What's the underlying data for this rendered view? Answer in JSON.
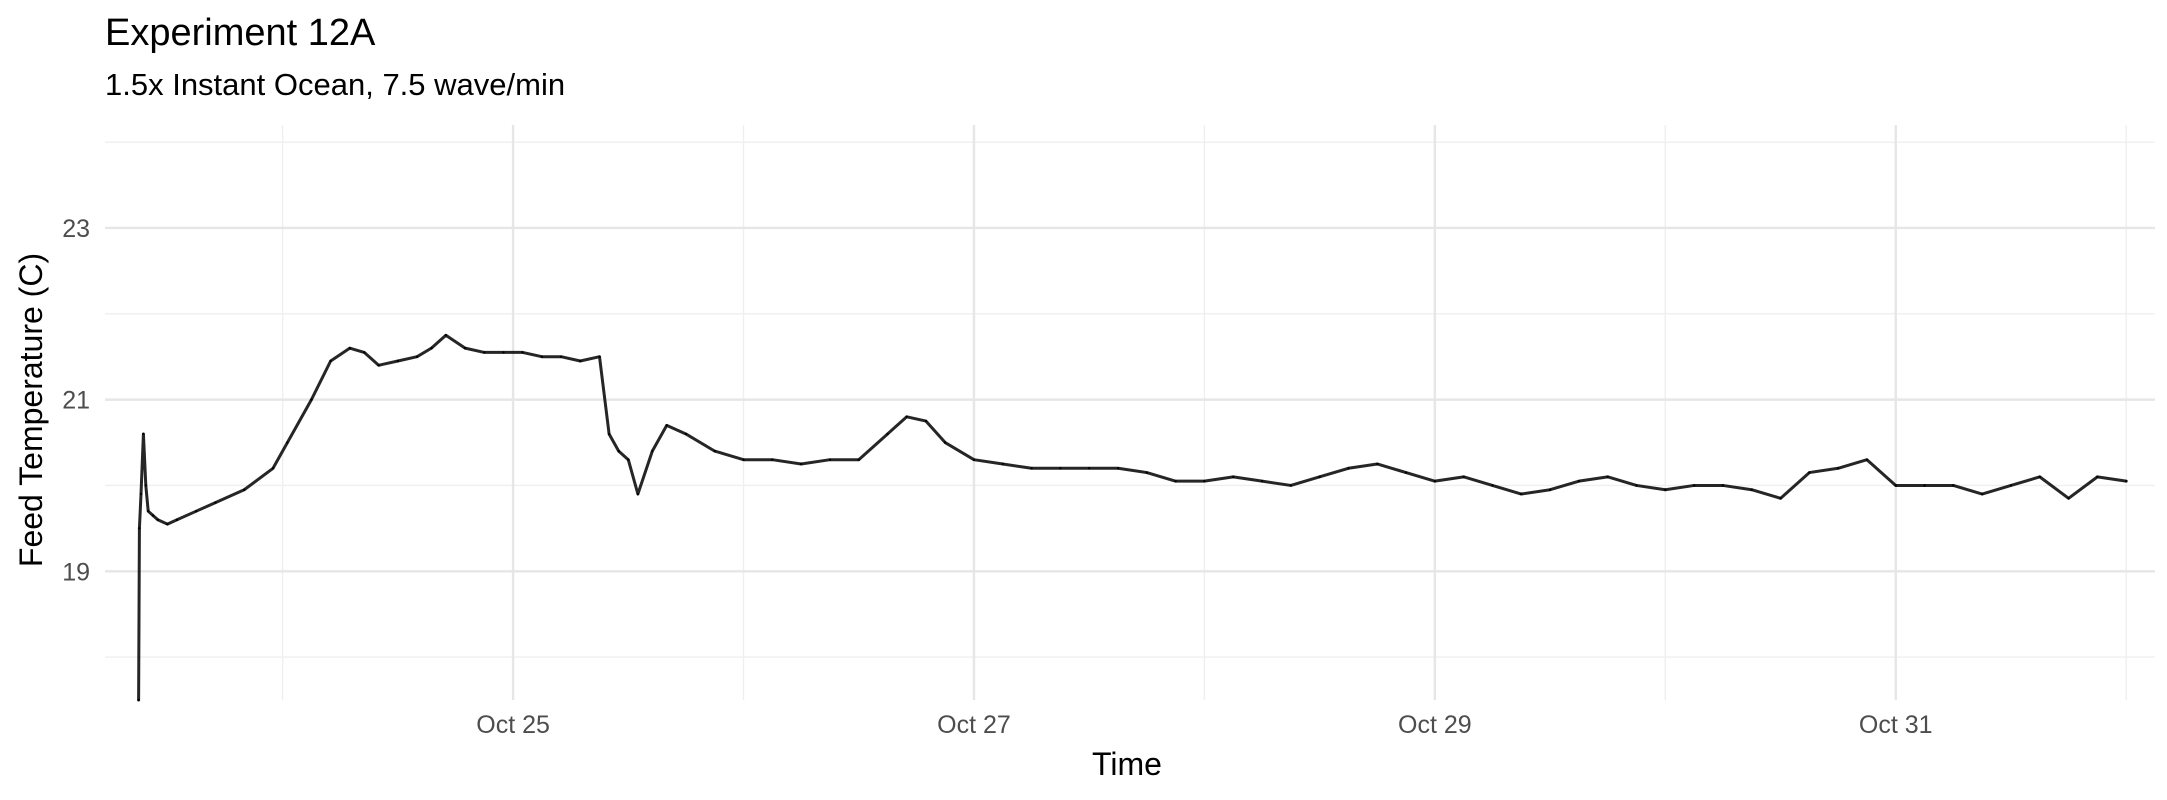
{
  "chart_data": {
    "type": "line",
    "title": "Experiment 12A",
    "subtitle": "1.5x Instant Ocean, 7.5 wave/min",
    "xlabel": "Time",
    "ylabel": "Feed Temperature (C)",
    "x_ticks": [
      {
        "label": "Oct 25",
        "value": "2023-10-25"
      },
      {
        "label": "Oct 27",
        "value": "2023-10-27"
      },
      {
        "label": "Oct 29",
        "value": "2023-10-29"
      },
      {
        "label": "Oct 31",
        "value": "2023-10-31"
      }
    ],
    "y_ticks": [
      19,
      21,
      23
    ],
    "xlim": [
      "2023-10-23T05:30",
      "2023-11-01T03:00"
    ],
    "ylim": [
      17.5,
      24.2
    ],
    "grid": true,
    "legend": "none",
    "line_color": "#000000",
    "series": [
      {
        "x": [
          "2023-10-23T09:00",
          "2023-10-23T09:05",
          "2023-10-23T09:15",
          "2023-10-23T09:30",
          "2023-10-23T09:45",
          "2023-10-23T10:00",
          "2023-10-23T10:30",
          "2023-10-23T11:00",
          "2023-10-23T12:00",
          "2023-10-23T13:00",
          "2023-10-23T15:00",
          "2023-10-23T17:00",
          "2023-10-23T20:00",
          "2023-10-23T23:00",
          "2023-10-24T00:30",
          "2023-10-24T03:00",
          "2023-10-24T05:00",
          "2023-10-24T07:00",
          "2023-10-24T08:30",
          "2023-10-24T10:00",
          "2023-10-24T12:00",
          "2023-10-24T14:00",
          "2023-10-24T15:30",
          "2023-10-24T17:00",
          "2023-10-24T19:00",
          "2023-10-24T21:00",
          "2023-10-24T23:00",
          "2023-10-25T01:00",
          "2023-10-25T03:00",
          "2023-10-25T05:00",
          "2023-10-25T07:00",
          "2023-10-25T09:00",
          "2023-10-25T10:00",
          "2023-10-25T11:00",
          "2023-10-25T12:00",
          "2023-10-25T13:00",
          "2023-10-25T14:30",
          "2023-10-25T16:00",
          "2023-10-25T18:00",
          "2023-10-25T21:00",
          "2023-10-26T00:00",
          "2023-10-26T03:00",
          "2023-10-26T06:00",
          "2023-10-26T09:00",
          "2023-10-26T12:00",
          "2023-10-26T15:00",
          "2023-10-26T17:00",
          "2023-10-26T19:00",
          "2023-10-26T21:00",
          "2023-10-27T00:00",
          "2023-10-27T03:00",
          "2023-10-27T06:00",
          "2023-10-27T09:00",
          "2023-10-27T12:00",
          "2023-10-27T15:00",
          "2023-10-27T18:00",
          "2023-10-27T21:00",
          "2023-10-28T00:00",
          "2023-10-28T03:00",
          "2023-10-28T06:00",
          "2023-10-28T09:00",
          "2023-10-28T12:00",
          "2023-10-28T15:00",
          "2023-10-28T18:00",
          "2023-10-28T21:00",
          "2023-10-29T00:00",
          "2023-10-29T03:00",
          "2023-10-29T06:00",
          "2023-10-29T09:00",
          "2023-10-29T12:00",
          "2023-10-29T15:00",
          "2023-10-29T18:00",
          "2023-10-29T21:00",
          "2023-10-30T00:00",
          "2023-10-30T03:00",
          "2023-10-30T06:00",
          "2023-10-30T09:00",
          "2023-10-30T12:00",
          "2023-10-30T15:00",
          "2023-10-30T18:00",
          "2023-10-30T21:00",
          "2023-10-31T00:00",
          "2023-10-31T03:00",
          "2023-10-31T06:00",
          "2023-10-31T09:00",
          "2023-10-31T12:00",
          "2023-10-31T15:00",
          "2023-10-31T18:00",
          "2023-10-31T21:00",
          "2023-11-01T00:00"
        ],
        "y": [
          17.5,
          19.5,
          19.9,
          20.6,
          20.0,
          19.7,
          19.65,
          19.6,
          19.55,
          19.6,
          19.7,
          19.8,
          19.95,
          20.2,
          20.5,
          21.0,
          21.45,
          21.6,
          21.55,
          21.4,
          21.45,
          21.5,
          21.6,
          21.75,
          21.6,
          21.55,
          21.55,
          21.55,
          21.5,
          21.5,
          21.45,
          21.5,
          20.6,
          20.4,
          20.3,
          19.9,
          20.4,
          20.7,
          20.6,
          20.4,
          20.3,
          20.3,
          20.25,
          20.3,
          20.3,
          20.6,
          20.8,
          20.75,
          20.5,
          20.3,
          20.25,
          20.2,
          20.2,
          20.2,
          20.2,
          20.15,
          20.05,
          20.05,
          20.1,
          20.05,
          20.0,
          20.1,
          20.2,
          20.25,
          20.15,
          20.05,
          20.1,
          20.0,
          19.9,
          19.95,
          20.05,
          20.1,
          20.0,
          19.95,
          20.0,
          20.0,
          19.95,
          19.85,
          20.15,
          20.2,
          20.3,
          20.0,
          20.0,
          20.0,
          19.9,
          20.0,
          20.1,
          19.85,
          20.1,
          20.05
        ]
      }
    ]
  }
}
